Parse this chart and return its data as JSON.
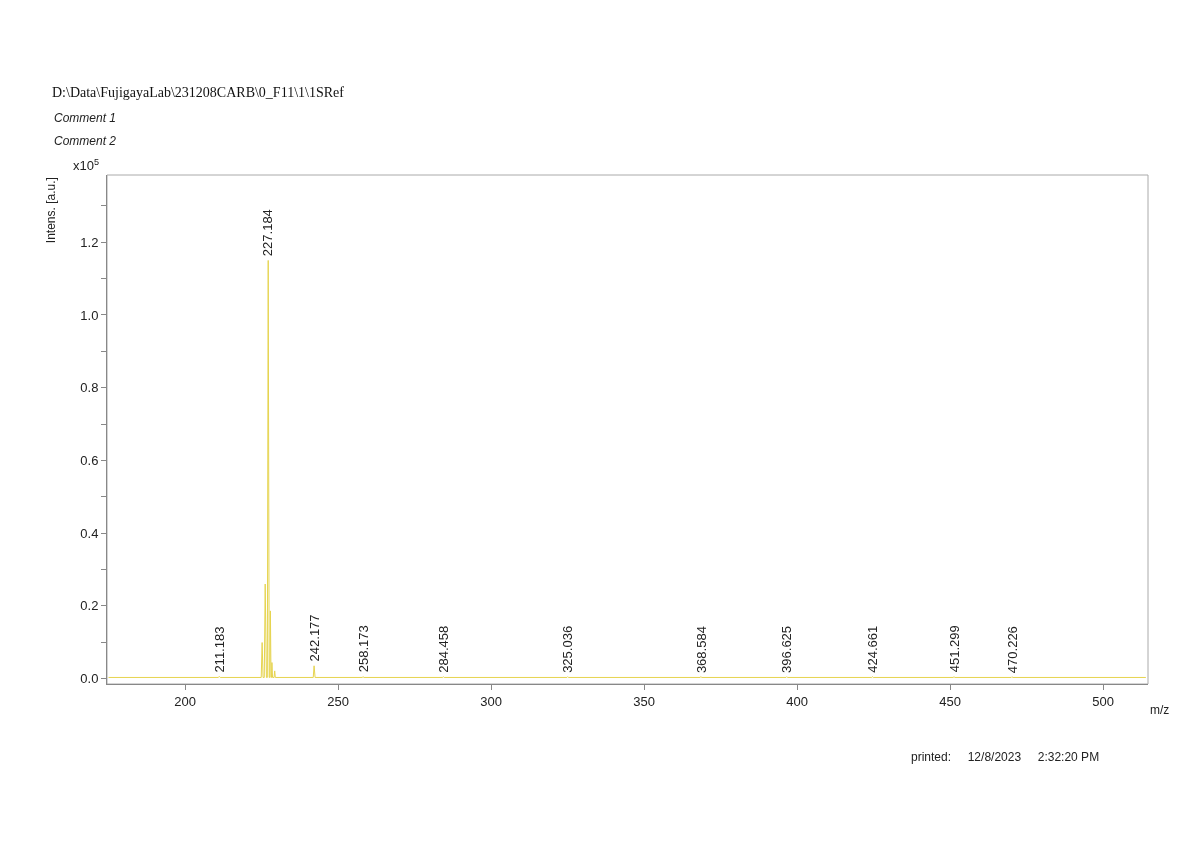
{
  "chart_data": {
    "type": "line",
    "title": "D:\\Data\\FujigayaLab\\231208CARB\\0_F11\\1\\1SRef",
    "xlabel": "m/z",
    "ylabel": "Intens. [a.u.]",
    "x": [
      175,
      210.9,
      211.183,
      211.5,
      224.9,
      225.2,
      225.5,
      225.9,
      226.2,
      226.6,
      226.9,
      227.184,
      227.5,
      227.7,
      227.9,
      228.1,
      228.25,
      228.4,
      228.6,
      229.1,
      229.3,
      229.5,
      241.9,
      242.177,
      242.5,
      257.9,
      258.173,
      258.5,
      284.2,
      284.458,
      284.7,
      324.8,
      325.036,
      325.3,
      368.3,
      368.584,
      368.9,
      396.4,
      396.625,
      396.9,
      424.4,
      424.661,
      424.9,
      451.0,
      451.299,
      451.6,
      470.0,
      470.226,
      470.5,
      514
    ],
    "series": [
      {
        "color": "#e6d44f",
        "values": [
          0.003,
          0.003,
          0.006,
          0.003,
          0.003,
          0.099,
          0.003,
          0.003,
          0.26,
          0.003,
          0.003,
          1.15,
          0.003,
          0.003,
          0.186,
          0.003,
          0.003,
          0.044,
          0.003,
          0.003,
          0.021,
          0.003,
          0.003,
          0.035,
          0.003,
          0.003,
          0.005,
          0.003,
          0.003,
          0.005,
          0.003,
          0.003,
          0.005,
          0.003,
          0.003,
          0.005,
          0.003,
          0.003,
          0.005,
          0.003,
          0.003,
          0.005,
          0.003,
          0.003,
          0.005,
          0.003,
          0.003,
          0.005,
          0.003,
          0.003
        ]
      }
    ],
    "xlim": [
      174.5,
      514.7
    ],
    "ylim": [
      -0.015,
      1.385
    ],
    "xticks": [
      200,
      250,
      300,
      350,
      400,
      450,
      500
    ],
    "yticks": [
      {
        "value": 0,
        "label": "0.0"
      },
      {
        "value": 0.1,
        "label": null
      },
      {
        "value": 0.2,
        "label": "0.2"
      },
      {
        "value": 0.3,
        "label": null
      },
      {
        "value": 0.4,
        "label": "0.4"
      },
      {
        "value": 0.5,
        "label": null
      },
      {
        "value": 0.6,
        "label": "0.6"
      },
      {
        "value": 0.7,
        "label": null
      },
      {
        "value": 0.8,
        "label": "0.8"
      },
      {
        "value": 0.9,
        "label": null
      },
      {
        "value": 1.0,
        "label": "1.0"
      },
      {
        "value": 1.1,
        "label": null
      },
      {
        "value": 1.2,
        "label": "1.2"
      },
      {
        "value": 1.3,
        "label": null
      }
    ],
    "marker": "none",
    "line_style": "solid",
    "annotations": [
      {
        "text": "211.183",
        "x": 211.183,
        "y": 0.006
      },
      {
        "text": "227.184",
        "x": 227.184,
        "y": 1.15
      },
      {
        "text": "242.177",
        "x": 242.177,
        "y": 0.035
      },
      {
        "text": "258.173",
        "x": 258.173,
        "y": 0.005
      },
      {
        "text": "284.458",
        "x": 284.458,
        "y": 0.005
      },
      {
        "text": "325.036",
        "x": 325.036,
        "y": 0.005
      },
      {
        "text": "368.584",
        "x": 368.584,
        "y": 0.005
      },
      {
        "text": "396.625",
        "x": 396.625,
        "y": 0.005
      },
      {
        "text": "424.661",
        "x": 424.661,
        "y": 0.005
      },
      {
        "text": "451.299",
        "x": 451.299,
        "y": 0.005
      },
      {
        "text": "470.226",
        "x": 470.226,
        "y": 0.005
      },
      "x10$^{5}$",
      "Comment 1",
      "Comment 2",
      "printed:     12/8/2023     2:32:20 PM"
    ]
  }
}
